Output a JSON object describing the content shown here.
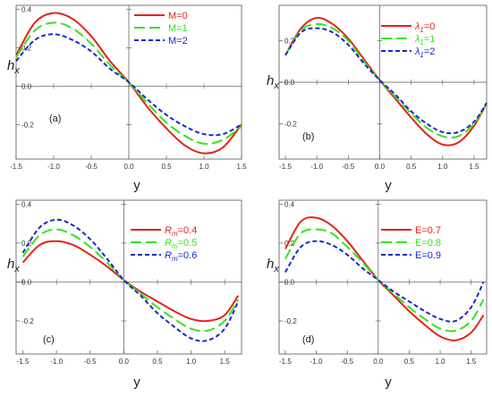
{
  "colors": {
    "red": "#e8201a",
    "green": "#33e61a",
    "blue": "#1a28c8",
    "axis": "#555555",
    "text": "#222222"
  },
  "chart_data": [
    {
      "type": "line",
      "panel_label": "(a)",
      "xlabel": "y",
      "ylabel_main": "h",
      "ylabel_sub": "x",
      "xlim": [
        -1.5,
        1.5
      ],
      "ylim": [
        -0.38,
        0.42
      ],
      "xticks": [
        -1.5,
        -1.0,
        -0.5,
        0.0,
        0.5,
        1.0,
        1.5
      ],
      "xtick_labels": [
        "-1.5",
        "-1.0",
        "-0.5",
        "0.0",
        "0.5",
        "1.0",
        "1.5"
      ],
      "yticks": [
        -0.2,
        0.0,
        0.2,
        0.4
      ],
      "ytick_labels": [
        "-0.2",
        "0.0",
        "0.2",
        "0.4"
      ],
      "legend_position": "top-right",
      "series": [
        {
          "name": "M=0",
          "legend_prefix": "M=",
          "legend_value": "0",
          "color": "red",
          "dash": "solid",
          "x": [
            -1.5,
            -1.25,
            -1.0,
            -0.75,
            -0.5,
            -0.25,
            0.0,
            0.25,
            0.5,
            0.75,
            1.0,
            1.25,
            1.5
          ],
          "y": [
            0.16,
            0.33,
            0.38,
            0.35,
            0.26,
            0.13,
            0.02,
            -0.11,
            -0.22,
            -0.31,
            -0.35,
            -0.32,
            -0.2
          ]
        },
        {
          "name": "M=1",
          "legend_prefix": "M=",
          "legend_value": "1",
          "color": "green",
          "dash": "long",
          "x": [
            -1.5,
            -1.25,
            -1.0,
            -0.75,
            -0.5,
            -0.25,
            0.0,
            0.25,
            0.5,
            0.75,
            1.0,
            1.25,
            1.5
          ],
          "y": [
            0.15,
            0.29,
            0.33,
            0.3,
            0.22,
            0.11,
            0.02,
            -0.09,
            -0.19,
            -0.26,
            -0.3,
            -0.28,
            -0.21
          ]
        },
        {
          "name": "M=2",
          "legend_prefix": "M=",
          "legend_value": "2",
          "color": "blue",
          "dash": "short",
          "x": [
            -1.5,
            -1.25,
            -1.0,
            -0.75,
            -0.5,
            -0.25,
            0.0,
            0.25,
            0.5,
            0.75,
            1.0,
            1.25,
            1.5
          ],
          "y": [
            0.13,
            0.24,
            0.27,
            0.24,
            0.18,
            0.09,
            0.02,
            -0.07,
            -0.15,
            -0.21,
            -0.25,
            -0.25,
            -0.2
          ]
        }
      ]
    },
    {
      "type": "line",
      "panel_label": "(b)",
      "xlabel": "y",
      "ylabel_main": "h",
      "ylabel_sub": "x",
      "xlim": [
        -1.6,
        1.7
      ],
      "ylim": [
        -0.37,
        0.37
      ],
      "xticks": [
        -1.5,
        -1.0,
        -0.5,
        0.0,
        0.5,
        1.0,
        1.5
      ],
      "xtick_labels": [
        "-1.5",
        "-1.0",
        "-0.5",
        "0.0",
        "0.5",
        "1.0",
        "1.5"
      ],
      "yticks": [
        -0.2,
        0.0,
        0.2
      ],
      "ytick_labels": [
        "-0.2",
        "0.0",
        "0.2"
      ],
      "legend_position": "top-right",
      "series": [
        {
          "name": "λ1=0",
          "legend_prefix": "λ",
          "legend_sub": "1",
          "legend_suffix": "=0",
          "color": "red",
          "dash": "solid",
          "x": [
            -1.5,
            -1.25,
            -1.0,
            -0.75,
            -0.5,
            -0.25,
            0.0,
            0.25,
            0.5,
            0.75,
            1.0,
            1.25,
            1.5,
            1.7
          ],
          "y": [
            0.13,
            0.26,
            0.31,
            0.28,
            0.21,
            0.11,
            0.01,
            -0.08,
            -0.17,
            -0.25,
            -0.3,
            -0.29,
            -0.21,
            -0.1
          ]
        },
        {
          "name": "λ1=1",
          "legend_prefix": "λ",
          "legend_sub": "1",
          "legend_suffix": "=1",
          "color": "green",
          "dash": "long",
          "x": [
            -1.5,
            -1.25,
            -1.0,
            -0.75,
            -0.5,
            -0.25,
            0.0,
            0.25,
            0.5,
            0.75,
            1.0,
            1.25,
            1.5,
            1.7
          ],
          "y": [
            0.13,
            0.25,
            0.28,
            0.26,
            0.2,
            0.1,
            0.01,
            -0.07,
            -0.15,
            -0.22,
            -0.26,
            -0.26,
            -0.2,
            -0.1
          ]
        },
        {
          "name": "λ1=2",
          "legend_prefix": "λ",
          "legend_sub": "1",
          "legend_suffix": "=2",
          "color": "blue",
          "dash": "short",
          "x": [
            -1.5,
            -1.25,
            -1.0,
            -0.75,
            -0.5,
            -0.25,
            0.0,
            0.25,
            0.5,
            0.75,
            1.0,
            1.25,
            1.5,
            1.7
          ],
          "y": [
            0.13,
            0.24,
            0.26,
            0.24,
            0.18,
            0.09,
            0.01,
            -0.06,
            -0.14,
            -0.2,
            -0.24,
            -0.24,
            -0.19,
            -0.1
          ]
        }
      ]
    },
    {
      "type": "line",
      "panel_label": "(c)",
      "xlabel": "y",
      "ylabel_main": "h",
      "ylabel_sub": "x",
      "xlim": [
        -1.6,
        1.75
      ],
      "ylim": [
        -0.37,
        0.42
      ],
      "xticks": [
        -1.5,
        -1.0,
        -0.5,
        0.0,
        0.5,
        1.0,
        1.5
      ],
      "xtick_labels": [
        "-1.5",
        "-1.0",
        "-0.5",
        "0.0",
        "0.5",
        "1.0",
        "1.5"
      ],
      "yticks": [
        -0.2,
        0.0,
        0.2,
        0.4
      ],
      "ytick_labels": [
        "-0.2",
        "0.0",
        "0.2",
        "0.4"
      ],
      "legend_position": "top-right",
      "series": [
        {
          "name": "Rm=0.4",
          "legend_prefix": "R",
          "legend_sub": "m",
          "legend_suffix": "=0.4",
          "color": "red",
          "dash": "solid",
          "x": [
            -1.5,
            -1.25,
            -1.0,
            -0.75,
            -0.5,
            -0.25,
            0.0,
            0.25,
            0.5,
            0.75,
            1.0,
            1.25,
            1.5,
            1.7
          ],
          "y": [
            0.1,
            0.19,
            0.21,
            0.19,
            0.14,
            0.08,
            0.01,
            -0.05,
            -0.1,
            -0.15,
            -0.19,
            -0.2,
            -0.17,
            -0.07
          ]
        },
        {
          "name": "Rm=0.5",
          "legend_prefix": "R",
          "legend_sub": "m",
          "legend_suffix": "=0.5",
          "color": "green",
          "dash": "long",
          "x": [
            -1.5,
            -1.25,
            -1.0,
            -0.75,
            -0.5,
            -0.25,
            0.0,
            0.25,
            0.5,
            0.75,
            1.0,
            1.25,
            1.5,
            1.7
          ],
          "y": [
            0.13,
            0.24,
            0.27,
            0.24,
            0.18,
            0.1,
            0.01,
            -0.06,
            -0.13,
            -0.19,
            -0.24,
            -0.25,
            -0.2,
            -0.09
          ]
        },
        {
          "name": "Rm=0.6",
          "legend_prefix": "R",
          "legend_sub": "m",
          "legend_suffix": "=0.6",
          "color": "blue",
          "dash": "short",
          "x": [
            -1.5,
            -1.25,
            -1.0,
            -0.75,
            -0.5,
            -0.25,
            0.0,
            0.25,
            0.5,
            0.75,
            1.0,
            1.25,
            1.5,
            1.7
          ],
          "y": [
            0.15,
            0.28,
            0.32,
            0.29,
            0.22,
            0.12,
            0.01,
            -0.07,
            -0.16,
            -0.23,
            -0.29,
            -0.3,
            -0.24,
            -0.1
          ]
        }
      ]
    },
    {
      "type": "line",
      "panel_label": "(d)",
      "xlabel": "y",
      "ylabel_main": "h",
      "ylabel_sub": "x",
      "xlim": [
        -1.6,
        1.75
      ],
      "ylim": [
        -0.37,
        0.42
      ],
      "xticks": [
        -1.5,
        -1.0,
        -0.5,
        0.0,
        0.5,
        1.0,
        1.5
      ],
      "xtick_labels": [
        "-1.5",
        "-1.0",
        "-0.5",
        "0.0",
        "0.5",
        "1.0",
        "1.5"
      ],
      "yticks": [
        -0.2,
        0.0,
        0.2,
        0.4
      ],
      "ytick_labels": [
        "-0.2",
        "0.0",
        "0.2",
        "0.4"
      ],
      "legend_position": "top-right",
      "series": [
        {
          "name": "E=0.7",
          "legend_prefix": "E=",
          "legend_value": "0.7",
          "color": "red",
          "dash": "solid",
          "x": [
            -1.5,
            -1.25,
            -1.0,
            -0.75,
            -0.5,
            -0.25,
            0.0,
            0.25,
            0.5,
            0.75,
            1.0,
            1.25,
            1.5,
            1.7
          ],
          "y": [
            0.17,
            0.31,
            0.33,
            0.29,
            0.21,
            0.11,
            0.01,
            -0.07,
            -0.15,
            -0.22,
            -0.28,
            -0.3,
            -0.26,
            -0.17
          ]
        },
        {
          "name": "E=0.8",
          "legend_prefix": "E=",
          "legend_value": "0.8",
          "color": "green",
          "dash": "long",
          "x": [
            -1.5,
            -1.25,
            -1.0,
            -0.75,
            -0.5,
            -0.25,
            0.0,
            0.25,
            0.5,
            0.75,
            1.0,
            1.25,
            1.5,
            1.7
          ],
          "y": [
            0.12,
            0.25,
            0.27,
            0.25,
            0.18,
            0.1,
            0.01,
            -0.06,
            -0.13,
            -0.19,
            -0.24,
            -0.25,
            -0.2,
            -0.09
          ]
        },
        {
          "name": "E=0.9",
          "legend_prefix": "E=",
          "legend_value": "0.9",
          "color": "blue",
          "dash": "short",
          "x": [
            -1.5,
            -1.25,
            -1.0,
            -0.75,
            -0.5,
            -0.25,
            0.0,
            0.25,
            0.5,
            0.75,
            1.0,
            1.25,
            1.5,
            1.7
          ],
          "y": [
            0.05,
            0.18,
            0.21,
            0.19,
            0.14,
            0.07,
            0.01,
            -0.05,
            -0.1,
            -0.15,
            -0.19,
            -0.2,
            -0.13,
            0.0
          ]
        }
      ]
    }
  ]
}
